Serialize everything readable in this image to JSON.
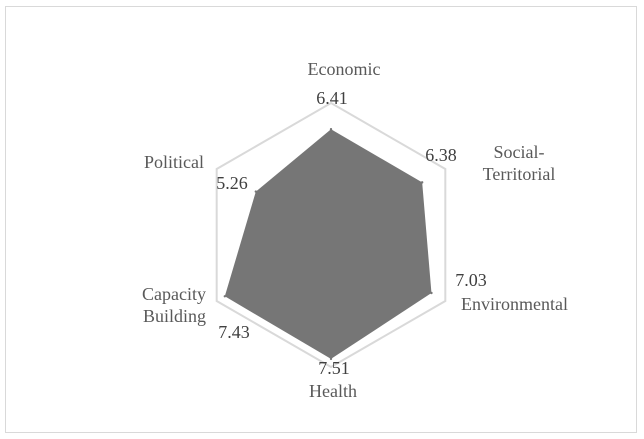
{
  "chart_data": {
    "type": "radar",
    "categories": [
      "Economic",
      "Social-Territorial",
      "Environmental",
      "Health",
      "Capacity Building",
      "Political"
    ],
    "values": [
      6.41,
      6.38,
      7.03,
      7.51,
      7.43,
      5.26
    ],
    "value_labels": [
      "6.41",
      "6.38",
      "7.03",
      "7.51",
      "7.43",
      "5.26"
    ],
    "category_lines": [
      [
        "Economic"
      ],
      [
        "Social-",
        "Territorial"
      ],
      [
        "Environmental"
      ],
      [
        "Health"
      ],
      [
        "Capacity",
        "Building"
      ],
      [
        "Political"
      ]
    ],
    "rmax": 8,
    "grid_rings": 1,
    "grid": true,
    "legend": "none",
    "colors": {
      "fill": "#767676",
      "grid": "#d9d9d9",
      "text": "#595959"
    }
  }
}
